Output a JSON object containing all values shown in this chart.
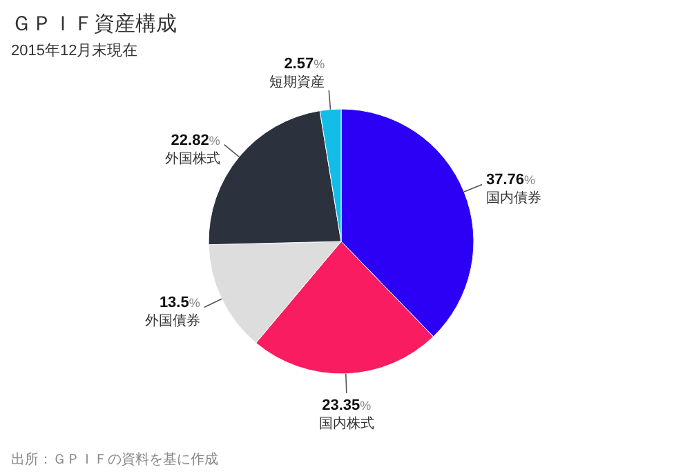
{
  "chart_data": {
    "type": "pie",
    "title": "ＧＰＩＦ資産構成",
    "subtitle": "2015年12月末現在",
    "categories": [
      "国内債券",
      "国内株式",
      "外国債券",
      "外国株式",
      "短期資産"
    ],
    "values": [
      37.76,
      23.35,
      13.5,
      22.82,
      2.57
    ],
    "value_labels": [
      "37.76%",
      "23.35%",
      "13.5%",
      "22.82%",
      "2.57%"
    ],
    "colors": [
      "#2b00f5",
      "#f91c60",
      "#dddddd",
      "#2b323d",
      "#12bde8"
    ],
    "annotations": [
      "出所：ＧＰＩＦの資料を基に作成"
    ]
  }
}
